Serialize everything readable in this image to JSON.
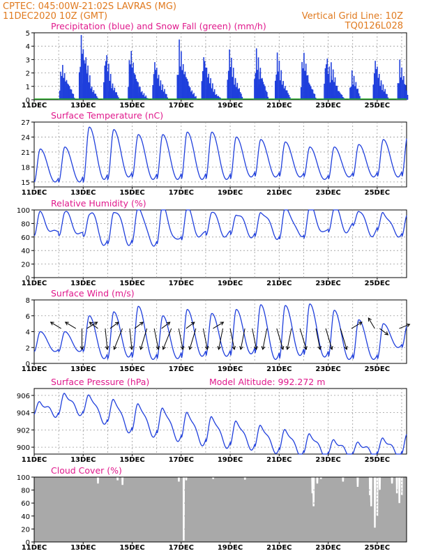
{
  "header": {
    "line1": "CPTEC:   045:00W-21:02S   LAVRAS  (MG)",
    "line2": "11DEC2020  10Z  (GMT)",
    "right1": "Vertical Grid Line: 10Z",
    "right2": "TQ0126L028"
  },
  "colors": {
    "header": "#e07a1f",
    "title": "#e0198c",
    "series": "#1f3fdc",
    "snow": "#22aa22",
    "cloud": "#a9a9a9"
  },
  "x_ticks": [
    "11DEC",
    "13DEC",
    "15DEC",
    "17DEC",
    "19DEC",
    "21DEC",
    "23DEC",
    "25DEC"
  ],
  "chart_data": [
    {
      "type": "bar",
      "title": "Precipitation (blue) and Snow Fall (green) (mm/h)",
      "ylim": [
        0,
        5
      ],
      "yticks": [
        "0",
        "1",
        "2",
        "3",
        "4",
        "5"
      ],
      "xlim_days": [
        0,
        15.2
      ],
      "series": [
        {
          "name": "Precipitation",
          "color": "#1f3fdc",
          "events": [
            [
              1.1,
              2.9
            ],
            [
              1.3,
              1.6
            ],
            [
              1.9,
              5.0
            ],
            [
              2.05,
              3.6
            ],
            [
              2.25,
              1.2
            ],
            [
              2.9,
              3.8
            ],
            [
              3.1,
              1.5
            ],
            [
              3.9,
              4.1
            ],
            [
              4.1,
              2.0
            ],
            [
              4.3,
              0.8
            ],
            [
              4.9,
              3.1
            ],
            [
              5.1,
              1.6
            ],
            [
              5.9,
              4.5
            ],
            [
              6.1,
              2.5
            ],
            [
              6.3,
              1.0
            ],
            [
              6.9,
              3.6
            ],
            [
              7.1,
              2.0
            ],
            [
              7.3,
              0.6
            ],
            [
              7.95,
              3.9
            ],
            [
              8.15,
              1.8
            ],
            [
              9.05,
              3.9
            ],
            [
              9.2,
              2.2
            ],
            [
              9.9,
              3.6
            ],
            [
              10.1,
              1.5
            ],
            [
              10.95,
              3.9
            ],
            [
              11.15,
              1.6
            ],
            [
              11.9,
              3.5
            ],
            [
              12.1,
              2.8
            ],
            [
              12.3,
              1.0
            ],
            [
              12.95,
              2.2
            ],
            [
              13.9,
              3.2
            ],
            [
              14.1,
              1.6
            ],
            [
              14.9,
              3.0
            ]
          ]
        },
        {
          "name": "Snow Fall",
          "color": "#22aa22",
          "values_note": "0"
        }
      ]
    },
    {
      "type": "line",
      "title": "Surface Temperature (nC)",
      "ylim": [
        14,
        27
      ],
      "yticks": [
        "15",
        "18",
        "21",
        "24",
        "27"
      ],
      "daily_max": [
        21.6,
        22.0,
        26.0,
        25.5,
        24.5,
        24.5,
        25.0,
        25.0,
        24.0,
        23.5,
        23.0,
        22.0,
        22.0,
        22.5,
        23.5,
        24.5
      ],
      "daily_min": [
        15.0,
        15.0,
        15.5,
        16.0,
        15.5,
        15.5,
        15.5,
        15.5,
        16.0,
        16.0,
        16.0,
        15.5,
        16.0,
        16.0,
        16.0,
        16.0
      ]
    },
    {
      "type": "line",
      "title": "Relative Humidity (%)",
      "ylim": [
        0,
        100
      ],
      "yticks": [
        "0",
        "20",
        "40",
        "60",
        "80",
        "100"
      ],
      "daily_max": [
        95,
        100,
        100,
        100,
        100,
        100,
        100,
        100,
        100,
        100,
        100,
        100,
        100,
        100,
        100,
        95
      ],
      "daily_min": [
        62,
        60,
        50,
        55,
        52,
        55,
        58,
        58,
        60,
        62,
        65,
        68,
        70,
        62,
        60,
        55
      ]
    },
    {
      "type": "line",
      "title": "Surface Wind (m/s)",
      "ylim": [
        0,
        8
      ],
      "yticks": [
        "0",
        "2",
        "4",
        "6",
        "8"
      ],
      "daily_max": [
        4.0,
        4.0,
        6.0,
        6.5,
        7.2,
        6.0,
        6.8,
        6.3,
        6.8,
        7.4,
        7.3,
        7.5,
        6.7,
        5.5,
        5.0,
        5.0
      ],
      "daily_min": [
        1.5,
        1.5,
        0.6,
        0.8,
        0.5,
        0.6,
        0.9,
        0.9,
        1.2,
        0.5,
        1.0,
        0.8,
        0.5,
        0.5,
        2.0,
        1.3
      ],
      "arrows": [
        [
          1.1,
          -0.5,
          0.3
        ],
        [
          1.7,
          -0.5,
          0.3
        ],
        [
          1.95,
          0,
          -1
        ],
        [
          2.15,
          0.5,
          0.3
        ],
        [
          2.6,
          -0.4,
          0.3
        ],
        [
          2.9,
          0.1,
          -1
        ],
        [
          3.1,
          0.4,
          0.3
        ],
        [
          3.6,
          -0.4,
          -1
        ],
        [
          3.9,
          0.1,
          -1
        ],
        [
          4.1,
          0.4,
          0.3
        ],
        [
          4.6,
          -0.3,
          -1
        ],
        [
          4.9,
          0.2,
          -1
        ],
        [
          5.2,
          0.4,
          0.3
        ],
        [
          5.6,
          -0.4,
          -1
        ],
        [
          5.9,
          0.2,
          -1
        ],
        [
          6.2,
          0.4,
          0.3
        ],
        [
          6.6,
          -0.3,
          -1
        ],
        [
          6.9,
          0.2,
          -1
        ],
        [
          7.3,
          0.5,
          0.3
        ],
        [
          7.7,
          -0.2,
          -1
        ],
        [
          8.0,
          0.2,
          -1
        ],
        [
          8.6,
          -0.2,
          -1
        ],
        [
          8.9,
          0.2,
          -1
        ],
        [
          9.5,
          -0.2,
          -1
        ],
        [
          9.9,
          0.3,
          -1
        ],
        [
          10.5,
          -0.2,
          -1
        ],
        [
          10.85,
          0.3,
          -1
        ],
        [
          11.5,
          0.2,
          -1
        ],
        [
          11.9,
          0.3,
          -1
        ],
        [
          12.5,
          0.3,
          -1
        ],
        [
          12.95,
          0.5,
          0.3
        ],
        [
          13.9,
          -0.3,
          0.5
        ],
        [
          14.1,
          0.4,
          -0.3
        ],
        [
          14.9,
          0.5,
          0.2
        ]
      ]
    },
    {
      "type": "line",
      "title": "Surface Pressure (hPa)",
      "annotation": "Model Altitude: 992.272 m",
      "ylim": [
        899.2,
        906.8
      ],
      "yticks": [
        "900",
        "902",
        "904",
        "906"
      ],
      "daily_max": [
        905.2,
        906.2,
        906.0,
        905.5,
        905.0,
        904.5,
        904.0,
        903.5,
        903.0,
        902.5,
        902.0,
        901.5,
        900.8,
        900.5,
        901.0,
        901.5
      ],
      "daily_min": [
        903.8,
        904.0,
        903.0,
        902.0,
        901.5,
        901.0,
        900.5,
        900.2,
        900.0,
        899.6,
        899.3,
        899.2,
        899.2,
        899.2,
        899.2,
        899.3
      ]
    },
    {
      "type": "area",
      "title": "Cloud Cover (%)",
      "ylim": [
        0,
        100
      ],
      "yticks": [
        "0",
        "20",
        "40",
        "60",
        "80",
        "100"
      ],
      "base_value": 100,
      "dips": [
        [
          2.6,
          90
        ],
        [
          3.4,
          95
        ],
        [
          3.6,
          88
        ],
        [
          5.9,
          93
        ],
        [
          6.1,
          2
        ],
        [
          6.2,
          95
        ],
        [
          7.3,
          97
        ],
        [
          8.6,
          96
        ],
        [
          11.35,
          75
        ],
        [
          11.4,
          55
        ],
        [
          11.55,
          90
        ],
        [
          11.7,
          97
        ],
        [
          12.6,
          93
        ],
        [
          13.2,
          85
        ],
        [
          13.7,
          72
        ],
        [
          13.75,
          55
        ],
        [
          13.9,
          22
        ],
        [
          14.0,
          40
        ],
        [
          14.1,
          80
        ],
        [
          14.6,
          90
        ],
        [
          14.8,
          75
        ],
        [
          14.9,
          60
        ],
        [
          15.0,
          72
        ]
      ]
    }
  ]
}
